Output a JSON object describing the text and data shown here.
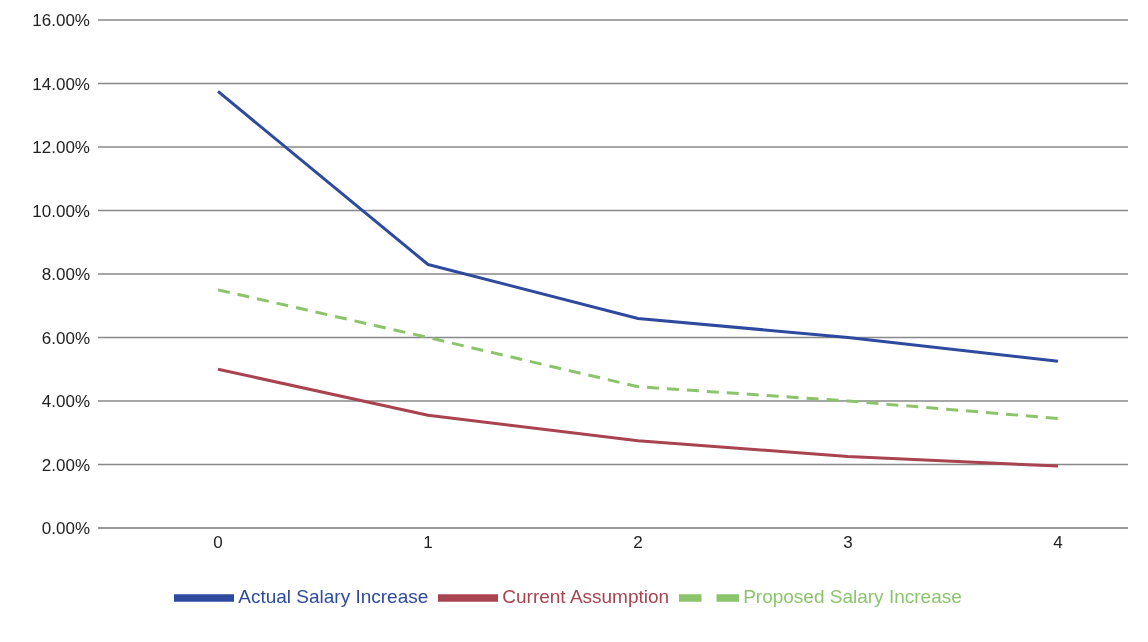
{
  "chart_data": {
    "type": "line",
    "categories": [
      "0",
      "1",
      "2",
      "3",
      "4"
    ],
    "series": [
      {
        "name": "Actual Salary Increase",
        "color": "#2e4a9e",
        "values": [
          13.75,
          8.3,
          6.6,
          6.0,
          5.25
        ]
      },
      {
        "name": "Current Assumption",
        "color": "#a8434f",
        "values": [
          5.0,
          3.55,
          2.75,
          2.25,
          1.95
        ]
      },
      {
        "name": "Proposed Salary Increase",
        "color": "#8cc46c",
        "values": [
          7.5,
          6.0,
          4.45,
          4.0,
          3.45
        ],
        "line_style": "dashed"
      }
    ],
    "ylim": [
      0,
      16
    ],
    "yticks": [
      {
        "value": 0,
        "label": "0.00%"
      },
      {
        "value": 2,
        "label": "2.00%"
      },
      {
        "value": 4,
        "label": "4.00%"
      },
      {
        "value": 6,
        "label": "6.00%"
      },
      {
        "value": 8,
        "label": "8.00%"
      },
      {
        "value": 10,
        "label": "10.00%"
      },
      {
        "value": 12,
        "label": "12.00%"
      },
      {
        "value": 14,
        "label": "14.00%"
      },
      {
        "value": 16,
        "label": "16.00%"
      }
    ],
    "grid": "y",
    "legend": "bottom",
    "marker": "none",
    "line_style": "solid"
  }
}
